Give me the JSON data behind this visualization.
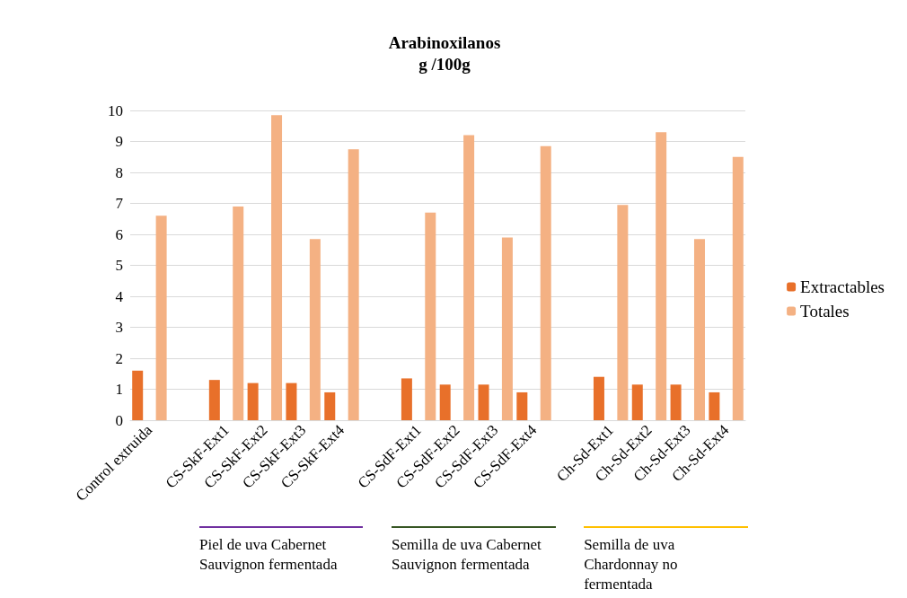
{
  "chart_data": {
    "type": "bar",
    "title": "Arabinoxilanos\ng /100g",
    "categories": [
      "Control extruida",
      null,
      "CS-SkF-Ext1",
      "CS-SkF-Ext2",
      "CS-SkF-Ext3",
      "CS-SkF-Ext4",
      null,
      "CS-SdF-Ext1",
      "CS-SdF-Ext2",
      "CS-SdF-Ext3",
      "CS-SdF-Ext4",
      null,
      "Ch-Sd-Ext1",
      "Ch-Sd-Ext2",
      "Ch-Sd-Ext3",
      "Ch-Sd-Ext4"
    ],
    "series": [
      {
        "name": "Extractables",
        "color": "#e8702a",
        "values": [
          1.6,
          null,
          1.3,
          1.2,
          1.2,
          0.9,
          null,
          1.35,
          1.15,
          1.15,
          0.9,
          null,
          1.4,
          1.15,
          1.15,
          0.9
        ]
      },
      {
        "name": "Totales",
        "color": "#f4b183",
        "values": [
          6.6,
          null,
          6.9,
          9.85,
          5.85,
          8.75,
          null,
          6.7,
          9.2,
          5.9,
          8.85,
          null,
          6.95,
          9.3,
          5.85,
          8.5
        ]
      }
    ],
    "ylim": [
      0,
      10
    ],
    "yticks": [
      0,
      1,
      2,
      3,
      4,
      5,
      6,
      7,
      8,
      9,
      10
    ],
    "grid": "y",
    "legend": "right",
    "annotations": [
      "Piel de uva Cabernet Sauvignon fermentada",
      "Semilla de uva Cabernet Sauvignon fermentada",
      "Semilla de uva Chardonnay no fermentada"
    ]
  }
}
